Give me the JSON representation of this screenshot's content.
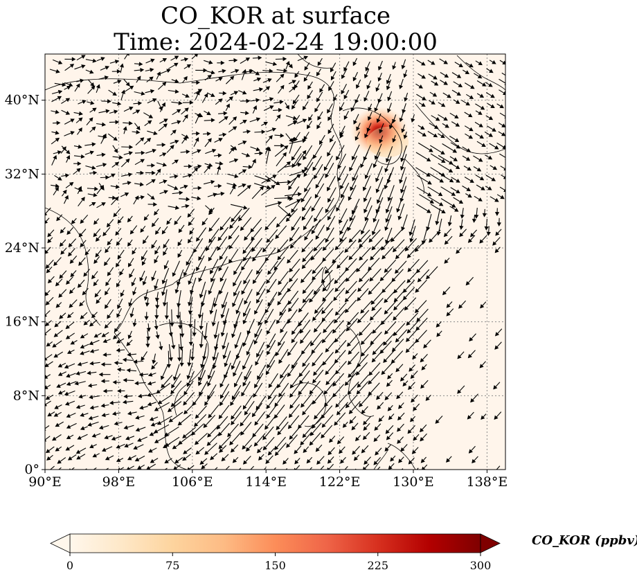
{
  "title": {
    "line1": "CO_KOR at surface",
    "line2": "Time: 2024-02-24 19:00:00"
  },
  "map": {
    "lon_range": [
      90,
      140
    ],
    "lat_range": [
      0,
      45
    ],
    "x_ticks": [
      "90°E",
      "98°E",
      "106°E",
      "114°E",
      "122°E",
      "130°E",
      "138°E"
    ],
    "y_ticks": [
      "0°",
      "8°N",
      "16°N",
      "24°N",
      "32°N",
      "40°N"
    ],
    "gridlines": true,
    "background_color": "#fff5eb",
    "coastline_color": "#000000",
    "wind_vectors_shown": true,
    "hotspot": {
      "description_value_ppbv_max": 300,
      "center_lon": 126.5,
      "center_lat": 37.5
    }
  },
  "colorbar": {
    "label": "CO_KOR (ppbv)",
    "ticks": [
      "0",
      "75",
      "150",
      "225",
      "300"
    ],
    "range": [
      0,
      300
    ],
    "extend": "both",
    "colormap": "OrRd",
    "colors": [
      "#fff7ec",
      "#fee8c8",
      "#fdd49e",
      "#fdbb84",
      "#fc8d59",
      "#ef6548",
      "#d7301f",
      "#b30000",
      "#7f0000"
    ]
  }
}
